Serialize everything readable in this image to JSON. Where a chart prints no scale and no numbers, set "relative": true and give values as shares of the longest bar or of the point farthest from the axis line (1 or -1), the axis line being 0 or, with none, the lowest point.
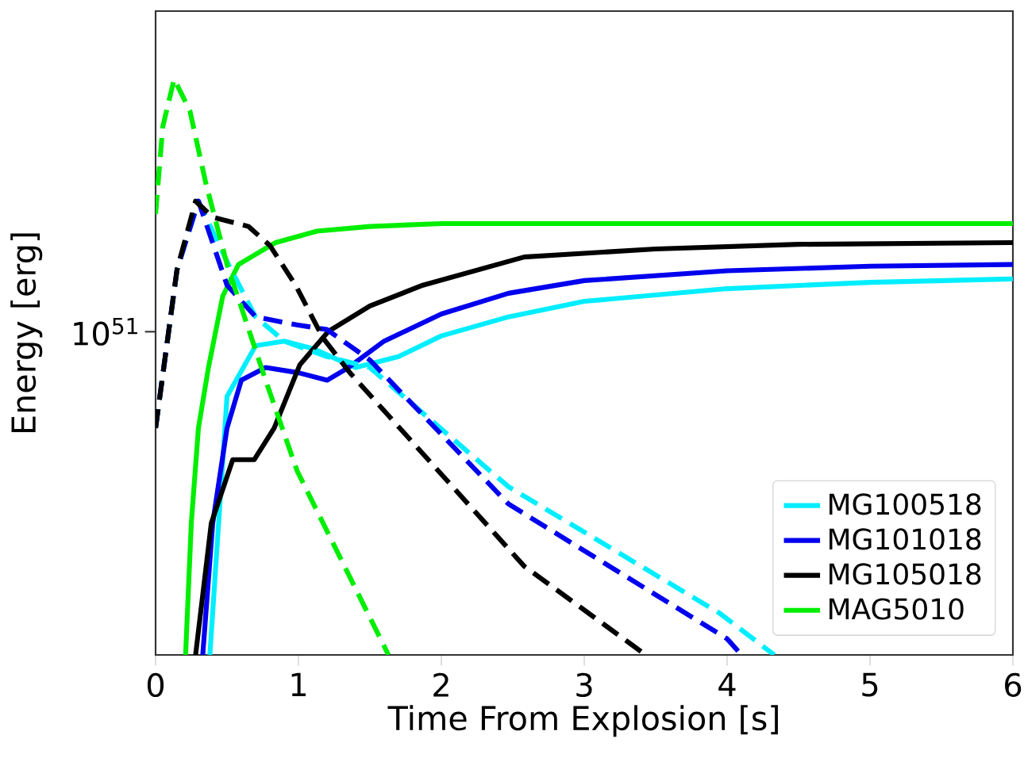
{
  "chart_data": {
    "type": "line",
    "xlabel": "Time From Explosion [s]",
    "ylabel": "Energy [erg]",
    "xlim": [
      0,
      6
    ],
    "xticks": [
      0,
      1,
      2,
      3,
      4,
      5,
      6
    ],
    "relative": true,
    "annotations": [
      "10$^{51}$"
    ],
    "legend": "bottom right",
    "series": [
      {
        "name": "MG100518",
        "color": "#00eeff",
        "line_style": "solid",
        "x": [
          0.38,
          0.5,
          0.7,
          0.9,
          1.1,
          1.4,
          1.7,
          2.0,
          2.47,
          3,
          4,
          5,
          6
        ],
        "values": [
          0,
          0.449,
          0.537,
          0.545,
          0.532,
          0.499,
          0.518,
          0.554,
          0.587,
          0.614,
          0.636,
          0.647,
          0.653
        ]
      },
      {
        "name": "MG101018",
        "color": "#0000ee",
        "line_style": "solid",
        "x": [
          0.33,
          0.4,
          0.5,
          0.6,
          0.77,
          1.0,
          1.2,
          1.35,
          1.6,
          2.0,
          2.47,
          3,
          4,
          5,
          6
        ],
        "values": [
          0,
          0.229,
          0.394,
          0.477,
          0.499,
          0.49,
          0.477,
          0.499,
          0.545,
          0.592,
          0.628,
          0.65,
          0.667,
          0.675,
          0.678
        ]
      },
      {
        "name": "MG105018",
        "color": "#000000",
        "line_style": "solid",
        "x": [
          0.28,
          0.39,
          0.54,
          0.69,
          0.83,
          1.01,
          1.21,
          1.5,
          1.87,
          2.58,
          3.5,
          4.5,
          6
        ],
        "values": [
          0,
          0.229,
          0.339,
          0.339,
          0.394,
          0.504,
          0.562,
          0.606,
          0.642,
          0.691,
          0.705,
          0.713,
          0.716
        ]
      },
      {
        "name": "MAG5010",
        "color": "#00ee00",
        "line_style": "solid",
        "x": [
          0.21,
          0.25,
          0.3,
          0.37,
          0.47,
          0.58,
          0.84,
          1.13,
          1.5,
          2.0,
          6
        ],
        "values": [
          0,
          0.229,
          0.394,
          0.499,
          0.623,
          0.678,
          0.716,
          0.736,
          0.744,
          0.749,
          0.749
        ]
      },
      {
        "color": "#00eeff",
        "line_style": "dashed",
        "x": [
          0,
          0.15,
          0.3,
          0.5,
          0.7,
          0.9,
          1.2,
          1.5,
          2.47,
          3.95,
          4.33
        ],
        "values": [
          0.394,
          0.669,
          0.788,
          0.683,
          0.587,
          0.545,
          0.518,
          0.499,
          0.292,
          0.072,
          0
        ]
      },
      {
        "color": "#0000ee",
        "line_style": "dashed",
        "x": [
          0,
          0.15,
          0.3,
          0.5,
          0.7,
          0.99,
          1.2,
          1.5,
          2.47,
          4.0,
          4.1
        ],
        "values": [
          0.394,
          0.669,
          0.788,
          0.642,
          0.587,
          0.573,
          0.565,
          0.512,
          0.262,
          0.028,
          0
        ]
      },
      {
        "color": "#000000",
        "line_style": "dashed",
        "x": [
          0,
          0.15,
          0.28,
          0.4,
          0.65,
          0.8,
          0.98,
          1.17,
          1.36,
          2.58,
          3.43
        ],
        "values": [
          0.394,
          0.669,
          0.788,
          0.76,
          0.744,
          0.711,
          0.642,
          0.551,
          0.49,
          0.154,
          0
        ]
      },
      {
        "color": "#00ee00",
        "line_style": "dashed",
        "x": [
          0,
          0.05,
          0.13,
          0.24,
          0.35,
          0.5,
          0.77,
          0.99,
          1.63
        ],
        "values": [
          0.766,
          0.917,
          1,
          0.945,
          0.821,
          0.678,
          0.477,
          0.32,
          0
        ]
      }
    ]
  }
}
